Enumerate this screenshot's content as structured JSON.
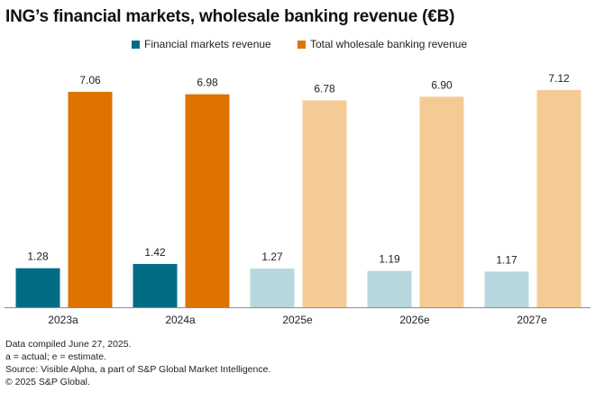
{
  "chart_data": {
    "type": "bar",
    "title": "ING’s financial markets, wholesale banking revenue (€B)",
    "categories": [
      "2023a",
      "2024a",
      "2025e",
      "2026e",
      "2027e"
    ],
    "estimate_from_index": 2,
    "series": [
      {
        "name": "Financial markets revenue",
        "values": [
          1.28,
          1.42,
          1.27,
          1.19,
          1.17
        ],
        "labels": [
          "1.28",
          "1.42",
          "1.27",
          "1.19",
          "1.17"
        ],
        "color_actual": "#006d85",
        "color_estimate": "#b7d7df"
      },
      {
        "name": "Total wholesale banking revenue",
        "values": [
          7.06,
          6.98,
          6.78,
          6.9,
          7.12
        ],
        "labels": [
          "7.06",
          "6.98",
          "6.78",
          "6.90",
          "7.12"
        ],
        "color_actual": "#de7300",
        "color_estimate": "#f5cb95"
      }
    ],
    "xlabel": "",
    "ylabel": "",
    "ylim": [
      0,
      7.5
    ],
    "grid": false,
    "legend": "top-center"
  },
  "footnotes": [
    "Data compiled June 27, 2025.",
    "a = actual; e = estimate.",
    "Source: Visible Alpha, a part of S&P Global Market Intelligence.",
    "© 2025 S&P Global."
  ]
}
